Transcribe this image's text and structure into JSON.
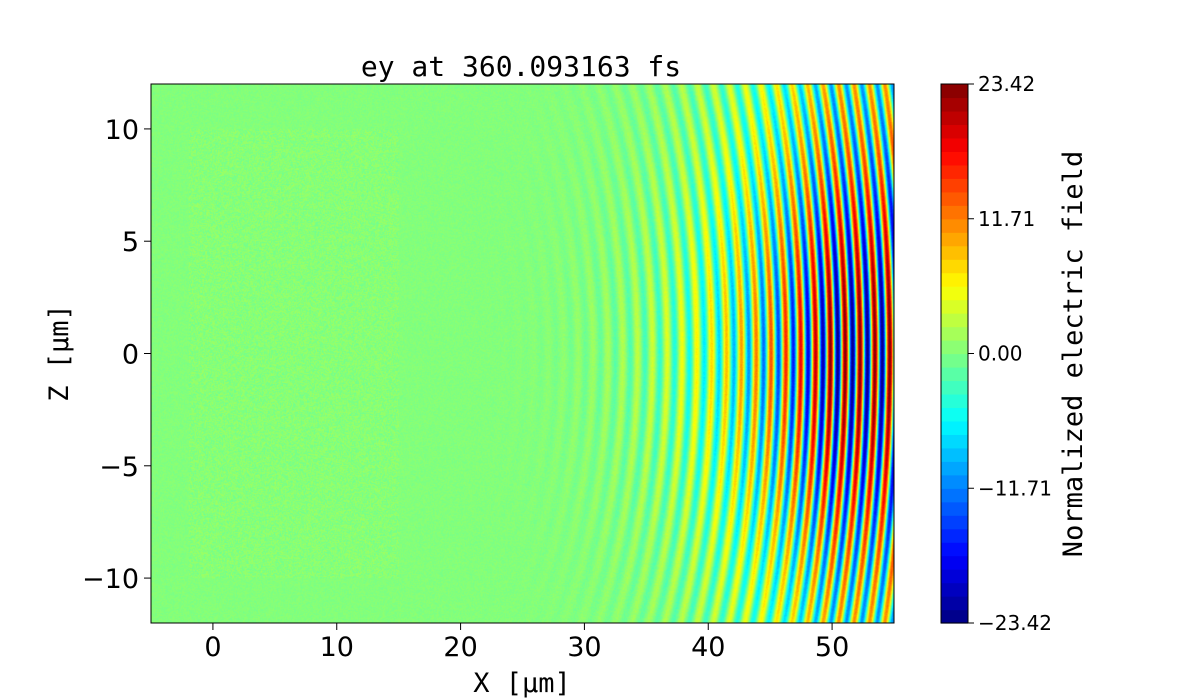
{
  "chart_data": {
    "type": "heatmap",
    "title": "ey at 360.093163 fs",
    "xlabel": "X [μm]",
    "ylabel": "Z [μm]",
    "xlim": [
      -5,
      55
    ],
    "ylim": [
      -12,
      12
    ],
    "x_ticks": [
      0,
      10,
      20,
      30,
      40,
      50
    ],
    "x_tick_labels": [
      "0",
      "10",
      "20",
      "30",
      "40",
      "50"
    ],
    "y_ticks": [
      10,
      5,
      0,
      -5,
      -10
    ],
    "y_tick_labels": [
      "10",
      "5",
      "0",
      "−5",
      "−10"
    ],
    "colormap": "jet",
    "colorbar": {
      "label": "Normalized electric field",
      "range": [
        -23.42,
        23.42
      ],
      "ticks": [
        23.42,
        11.71,
        0.0,
        -11.71,
        -23.42
      ],
      "tick_labels": [
        "23.42",
        "11.71",
        "0.00",
        "−11.71",
        "−23.42"
      ]
    },
    "field": {
      "peak_amplitude": 23.42,
      "wavefront_center_x": 10,
      "wavefront_center_z": 0,
      "pulse_peak_x": 50,
      "fringe_period_x": 1.2
    }
  }
}
